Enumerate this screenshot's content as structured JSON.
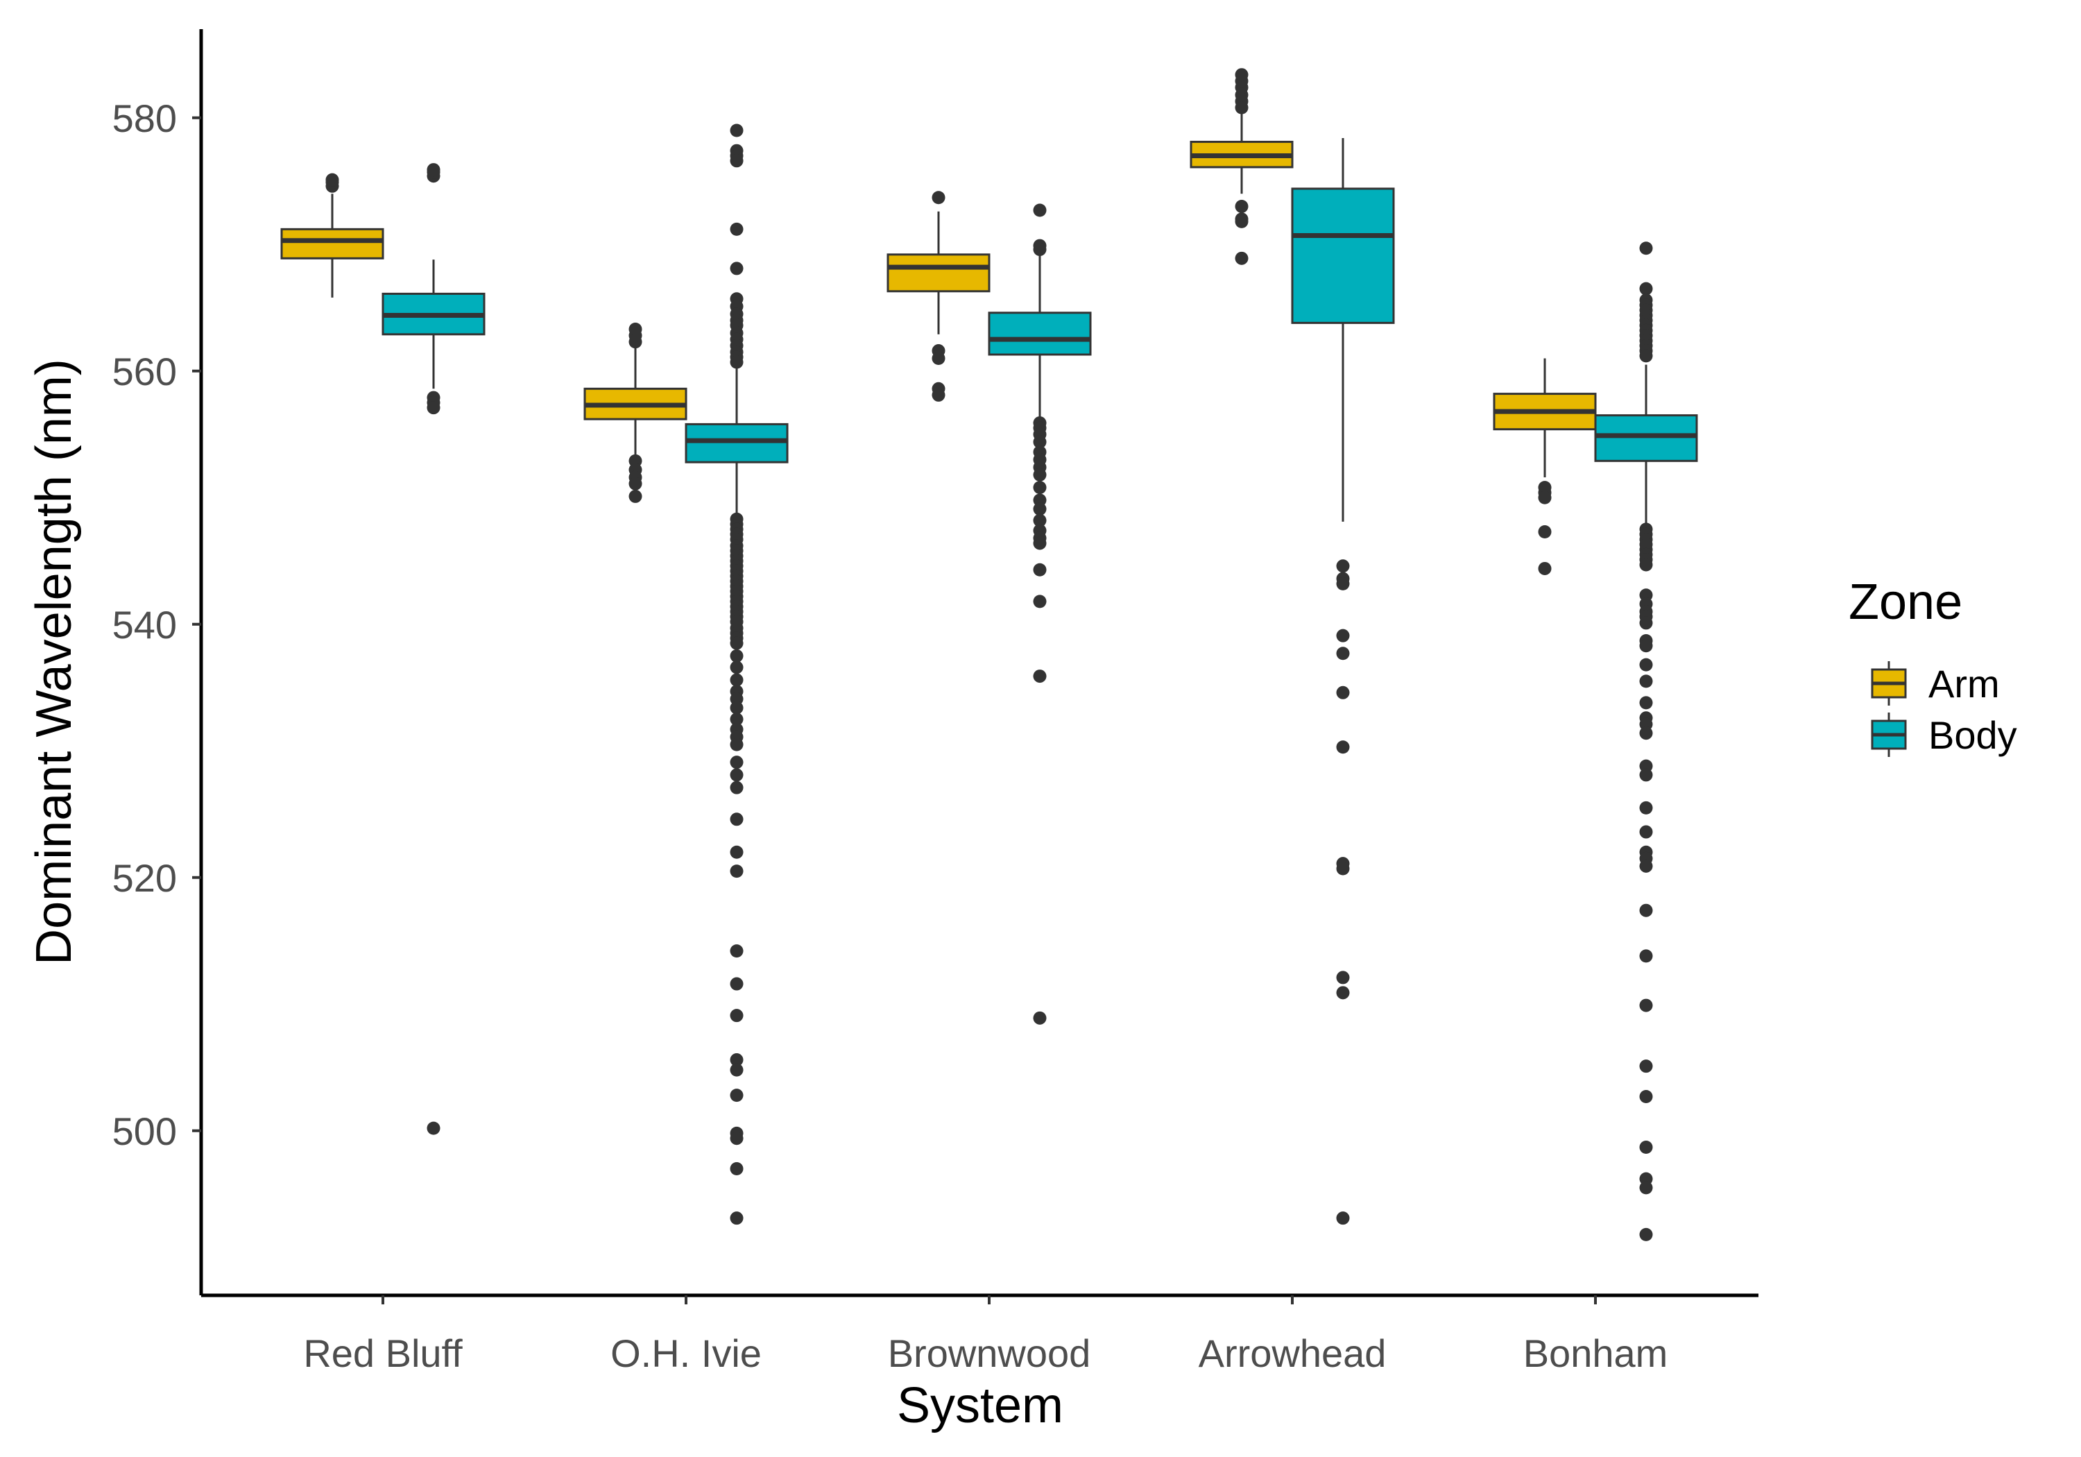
{
  "chart_data": {
    "type": "boxplot",
    "xlabel": "System",
    "ylabel": "Dominant Wavelength (nm)",
    "ylim": [
      487,
      587
    ],
    "yticks": [
      500,
      520,
      540,
      560,
      580
    ],
    "categories": [
      "Red Bluff",
      "O.H. Ivie",
      "Brownwood",
      "Arrowhead",
      "Bonham"
    ],
    "legend": {
      "title": "Zone",
      "position": "right"
    },
    "series": [
      {
        "name": "Arm",
        "color": "#E7B800",
        "boxes": [
          {
            "q1": 568.9,
            "median": 570.3,
            "q3": 571.2,
            "whisker_low": 565.8,
            "whisker_high": 574.0,
            "outliers": [
              574.6,
              574.9,
              575.1
            ]
          },
          {
            "q1": 556.2,
            "median": 557.3,
            "q3": 558.6,
            "whisker_low": 553.1,
            "whisker_high": 561.8,
            "outliers": [
              562.3,
              562.8,
              563.3,
              552.9,
              552.2,
              551.6,
              551.1,
              550.1
            ]
          },
          {
            "q1": 566.3,
            "median": 568.2,
            "q3": 569.2,
            "whisker_low": 562.9,
            "whisker_high": 572.6,
            "outliers": [
              573.7,
              561.6,
              561.0,
              558.6,
              558.1
            ]
          },
          {
            "q1": 576.1,
            "median": 577.0,
            "q3": 578.1,
            "whisker_low": 574.0,
            "whisker_high": 580.3,
            "outliers": [
              580.8,
              581.3,
              581.8,
              582.4,
              582.9,
              583.4,
              573.0,
              572.0,
              571.8,
              568.9
            ]
          },
          {
            "q1": 555.4,
            "median": 556.8,
            "q3": 558.2,
            "whisker_low": 551.6,
            "whisker_high": 561.0,
            "outliers": [
              550.8,
              550.4,
              550.0,
              547.3,
              544.4
            ]
          }
        ]
      },
      {
        "name": "Body",
        "color": "#00AFBB",
        "boxes": [
          {
            "q1": 562.9,
            "median": 564.4,
            "q3": 566.1,
            "whisker_low": 558.6,
            "whisker_high": 568.8,
            "outliers": [
              575.4,
              575.7,
              575.9,
              557.9,
              557.5,
              557.1,
              500.2
            ]
          },
          {
            "q1": 552.8,
            "median": 554.5,
            "q3": 555.8,
            "whisker_low": 548.6,
            "whisker_high": 560.2,
            "outliers": [
              579.0,
              577.4,
              577.0,
              576.6,
              571.2,
              568.1,
              565.7,
              565.1,
              564.5,
              564.0,
              563.6,
              563.0,
              562.5,
              562.0,
              561.5,
              561.1,
              560.7,
              548.3,
              547.9,
              547.5,
              547.1,
              546.7,
              546.2,
              545.8,
              545.4,
              545.0,
              544.6,
              544.2,
              543.8,
              543.4,
              543.0,
              542.6,
              542.2,
              541.8,
              541.4,
              541.0,
              540.6,
              540.2,
              539.7,
              539.3,
              538.9,
              538.5,
              537.5,
              536.6,
              535.6,
              534.7,
              534.1,
              533.4,
              532.5,
              531.7,
              531.1,
              530.5,
              529.1,
              528.1,
              527.1,
              524.6,
              522.0,
              520.5,
              514.2,
              511.6,
              509.1,
              505.6,
              504.8,
              502.8,
              499.8,
              499.4,
              497.0,
              493.1
            ]
          },
          {
            "q1": 561.3,
            "median": 562.5,
            "q3": 564.6,
            "whisker_low": 556.3,
            "whisker_high": 569.5,
            "outliers": [
              572.7,
              569.9,
              569.6,
              555.9,
              555.5,
              555.0,
              554.4,
              553.6,
              553.0,
              552.4,
              551.8,
              550.8,
              549.8,
              549.1,
              548.2,
              547.4,
              546.8,
              546.4,
              544.3,
              541.8,
              535.9,
              508.9
            ]
          },
          {
            "q1": 563.8,
            "median": 570.7,
            "q3": 574.4,
            "whisker_low": 548.1,
            "whisker_high": 578.4,
            "outliers": [
              544.6,
              543.6,
              543.2,
              539.1,
              537.7,
              534.6,
              530.3,
              521.1,
              520.7,
              512.1,
              510.9,
              493.1
            ]
          },
          {
            "q1": 552.9,
            "median": 554.9,
            "q3": 556.5,
            "whisker_low": 547.9,
            "whisker_high": 560.5,
            "outliers": [
              569.7,
              566.5,
              565.6,
              565.2,
              564.8,
              564.4,
              564.0,
              563.6,
              563.2,
              562.8,
              562.4,
              562.0,
              561.6,
              561.2,
              547.5,
              547.1,
              546.7,
              546.3,
              545.9,
              545.5,
              545.1,
              544.7,
              542.3,
              541.6,
              541.0,
              540.6,
              540.1,
              538.7,
              538.3,
              536.8,
              535.5,
              533.8,
              532.6,
              532.1,
              531.4,
              528.8,
              528.1,
              525.5,
              523.6,
              522.0,
              521.5,
              520.9,
              517.4,
              513.8,
              509.9,
              505.1,
              502.7,
              498.7,
              496.2,
              495.5,
              491.8
            ]
          }
        ]
      }
    ]
  }
}
